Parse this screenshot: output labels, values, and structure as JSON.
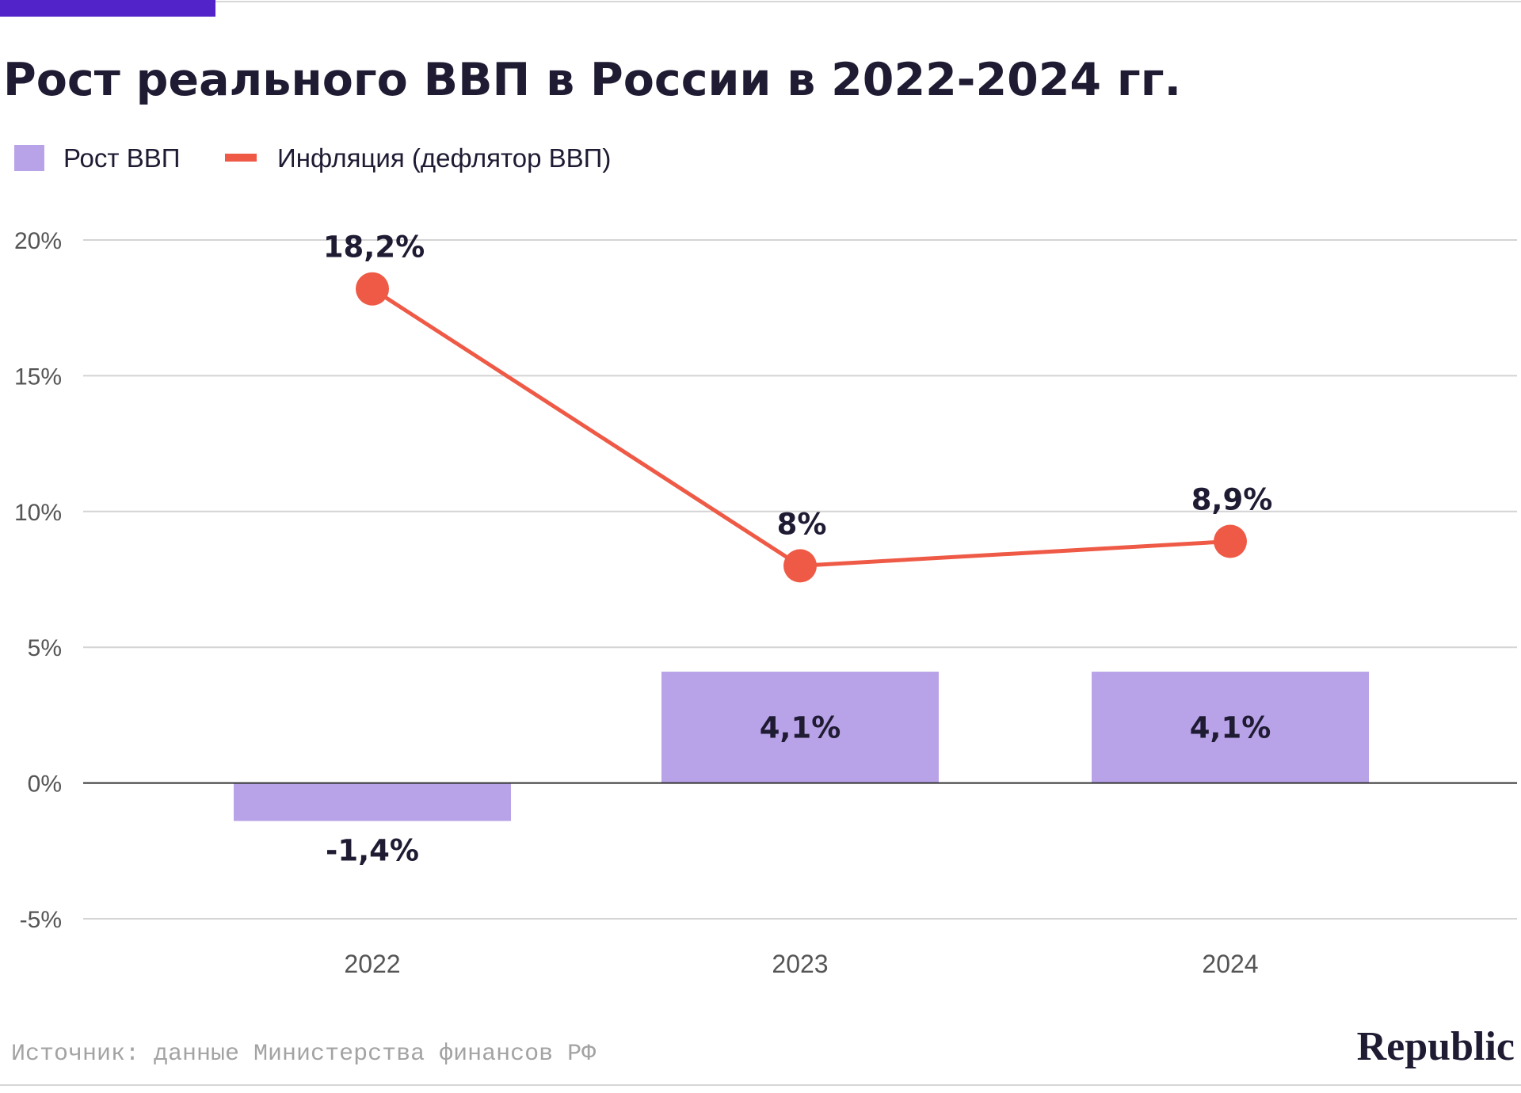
{
  "chart_data": {
    "type": "bar",
    "title": "Рост реального ВВП в России в 2022-2024 гг.",
    "categories": [
      "2022",
      "2023",
      "2024"
    ],
    "ylim": [
      -5,
      20
    ],
    "yticks": [
      20,
      15,
      10,
      5,
      0,
      -5
    ],
    "ytick_labels": [
      "20%",
      "15%",
      "10%",
      "5%",
      "0%",
      "-5%"
    ],
    "grid": true,
    "legend_position": "top-left",
    "series": [
      {
        "name": "Рост ВВП",
        "type": "bar",
        "color": "#b9a3e8",
        "values": [
          -1.4,
          4.1,
          4.1
        ],
        "labels": [
          "-1,4%",
          "4,1%",
          "4,1%"
        ]
      },
      {
        "name": "Инфляция (дефлятор ВВП)",
        "type": "line",
        "color": "#ef5a46",
        "values": [
          18.2,
          8.0,
          8.9
        ],
        "labels": [
          "18,2%",
          "8%",
          "8,9%"
        ]
      }
    ],
    "accent_color": "#5223c9",
    "source": "Источник: данные Министерства финансов РФ"
  },
  "brand": {
    "name": "Republic"
  }
}
